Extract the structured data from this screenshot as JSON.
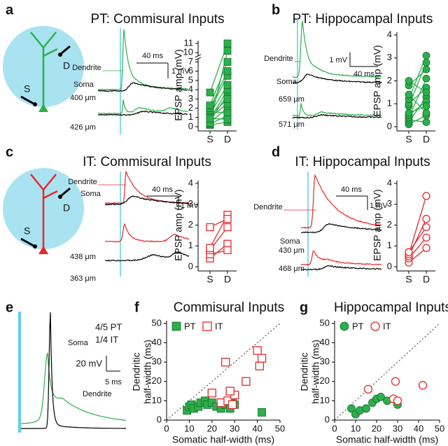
{
  "panel_letters": [
    "a",
    "b",
    "c",
    "d",
    "e",
    "f",
    "g"
  ],
  "trace_panels": [
    {
      "title": "PT: Commisural Inputs",
      "dendrite": "Dendrite",
      "soma": "Soma",
      "time_scale": "40 ms",
      "volt_scale": "1 mV",
      "depth_1": "400 μm",
      "depth_2": "426 μm",
      "diagram": [
        "S",
        "D"
      ]
    },
    {
      "title": "PT: Hippocampal Inputs",
      "dendrite": "Dendrite",
      "soma": "Soma",
      "time_scale": "40 ms",
      "volt_scale": "1 mV",
      "depth_1": "659 μm",
      "depth_2": "571 μm"
    },
    {
      "title": "IT: Commisural Inputs",
      "dendrite": "Dendrite",
      "soma": "Soma",
      "time_scale": "40 ms",
      "volt_scale": "1 mV",
      "depth_1": "438 μm",
      "depth_2": "363 μm",
      "diagram": [
        "S",
        "D"
      ]
    },
    {
      "title": "IT: Hippocampal Inputs",
      "dendrite": "Dendrite",
      "soma": "Soma",
      "time_scale": "40 ms",
      "volt_scale": "1 mV",
      "depth_1": "430 μm",
      "depth_2": "468 μm"
    }
  ],
  "panel_e": {
    "counts": [
      "4/5 PT",
      "1/4 IT"
    ],
    "soma": "Soma",
    "dendrite": "Dendrite",
    "volt_scale": "20 mV",
    "time_scale": "5 ms"
  },
  "chart_data": [
    {
      "type": "paired",
      "ylabel": "EPSP amp (mV)",
      "categories": [
        "S",
        "D"
      ],
      "ylim": [
        0,
        11
      ],
      "yticks": [
        0,
        1,
        2,
        3,
        4,
        5,
        6,
        7,
        10,
        11
      ],
      "axis_break": true,
      "marker": "square",
      "filled": true,
      "color": "#2db04b",
      "values": [
        [
          0.2,
          0.5
        ],
        [
          0.3,
          1.2
        ],
        [
          0.5,
          2.0
        ],
        [
          0.6,
          3.5
        ],
        [
          0.8,
          4.0
        ],
        [
          1.0,
          2.5
        ],
        [
          1.2,
          3.0
        ],
        [
          1.4,
          4.5
        ],
        [
          1.6,
          1.5
        ],
        [
          1.8,
          5.5
        ],
        [
          2.0,
          6.0
        ],
        [
          2.3,
          7.0
        ],
        [
          3.7,
          11
        ],
        [
          0.4,
          10.2
        ],
        [
          0.9,
          0.8
        ]
      ]
    },
    {
      "type": "paired",
      "ylabel": "EPSP amp (mV)",
      "categories": [
        "S",
        "D"
      ],
      "ylim": [
        0,
        4
      ],
      "yticks": [
        0,
        1,
        2,
        3,
        4
      ],
      "marker": "circle",
      "filled": true,
      "color": "#2db04b",
      "values": [
        [
          0.1,
          0.5
        ],
        [
          0.2,
          1.3
        ],
        [
          0.3,
          0.2
        ],
        [
          0.4,
          2.1
        ],
        [
          0.5,
          1.1
        ],
        [
          0.6,
          0.9
        ],
        [
          0.9,
          2.8
        ],
        [
          1.0,
          1.7
        ],
        [
          1.2,
          3.1
        ],
        [
          1.4,
          0.6
        ],
        [
          1.8,
          2.5
        ],
        [
          2.0,
          1.5
        ]
      ]
    },
    {
      "type": "paired",
      "ylabel": "EPSP amp (mV)",
      "categories": [
        "S",
        "D"
      ],
      "ylim": [
        0,
        4
      ],
      "yticks": [
        0,
        1,
        2,
        3,
        4
      ],
      "marker": "square",
      "filled": false,
      "color": "#e8282b",
      "values": [
        [
          0.4,
          1.1
        ],
        [
          0.6,
          0.8
        ],
        [
          0.8,
          1.9
        ],
        [
          0.9,
          2.5
        ],
        [
          1.9,
          2.3
        ]
      ]
    },
    {
      "type": "paired",
      "ylabel": "EPSP amp (mV)",
      "categories": [
        "S",
        "D"
      ],
      "ylim": [
        0,
        4
      ],
      "yticks": [
        0,
        1,
        2,
        3,
        4
      ],
      "marker": "circle",
      "filled": false,
      "color": "#e8282b",
      "values": [
        [
          0.2,
          0.9
        ],
        [
          0.4,
          1.4
        ],
        [
          0.5,
          2.3
        ],
        [
          0.6,
          3.4
        ],
        [
          0.7,
          1.9
        ]
      ]
    },
    {
      "type": "scatter",
      "title": "Commisural Inputs",
      "xlabel": "Somatic half-width (ms)",
      "ylabel": [
        "Dendritic",
        "half-width (ms)"
      ],
      "xlim": [
        0,
        50
      ],
      "ylim": [
        0,
        50
      ],
      "xticks": [
        0,
        10,
        20,
        30,
        40,
        50
      ],
      "yticks": [
        0,
        10,
        20,
        30,
        40,
        50
      ],
      "identity_line": true,
      "series": [
        {
          "name": "PT",
          "marker": "square",
          "filled": true,
          "color": "#2db04b",
          "x": [
            9,
            10,
            11,
            12,
            14,
            15,
            17,
            18,
            20,
            22,
            24,
            26,
            27,
            28,
            29,
            30,
            42
          ],
          "values": [
            5,
            7,
            8,
            6,
            7,
            9,
            10,
            8,
            9,
            7,
            6,
            8,
            10,
            6,
            9,
            8,
            4
          ]
        },
        {
          "name": "IT",
          "marker": "square",
          "filled": false,
          "color": "#e8282b",
          "x": [
            20,
            24,
            26,
            27,
            29,
            30,
            35,
            40,
            41,
            42,
            28
          ],
          "values": [
            14,
            9,
            30,
            10,
            8,
            13,
            20,
            36,
            28,
            32,
            15
          ]
        }
      ]
    },
    {
      "type": "scatter",
      "title": "Hippocampal Inputs",
      "xlabel": "Somatic half-width (ms)",
      "ylabel": [
        "Dendritic",
        "half-width (ms)"
      ],
      "xlim": [
        0,
        50
      ],
      "ylim": [
        0,
        50
      ],
      "xticks": [
        0,
        10,
        20,
        30,
        40,
        50
      ],
      "yticks": [
        0,
        10,
        20,
        30,
        40,
        50
      ],
      "identity_line": true,
      "series": [
        {
          "name": "PT",
          "marker": "circle",
          "filled": true,
          "color": "#2db04b",
          "x": [
            8,
            10,
            12,
            15,
            18,
            20,
            22,
            25,
            28,
            30
          ],
          "values": [
            6,
            3,
            5,
            6,
            9,
            11,
            12,
            10,
            11,
            8
          ]
        },
        {
          "name": "IT",
          "marker": "circle",
          "filled": false,
          "color": "#e8282b",
          "x": [
            16,
            29,
            28,
            30,
            42
          ],
          "values": [
            16,
            20,
            11,
            10,
            18
          ]
        }
      ]
    }
  ]
}
